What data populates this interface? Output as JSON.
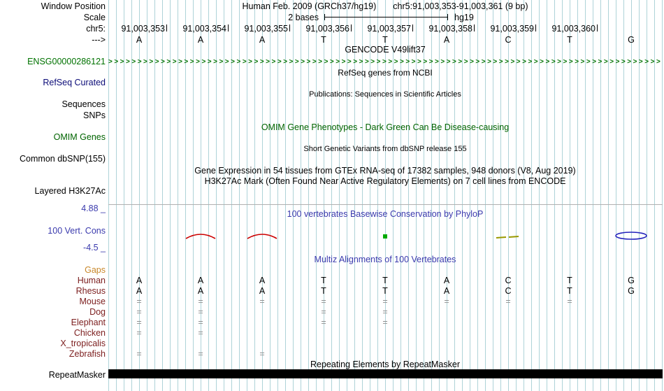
{
  "sidebar": {
    "window_position": "Window Position",
    "scale": "Scale",
    "chrom": "chr5:",
    "strand": "--->",
    "gencode_item": "ENSG00000286121",
    "refseq_curated": "RefSeq Curated",
    "sequences": "Sequences",
    "snps": "SNPs",
    "omim_genes": "OMIM Genes",
    "common_dbsnp": "Common dbSNP(155)",
    "layered_h3k27ac": "Layered H3K27Ac",
    "cons_max": "4.88 _",
    "cons_label": "100 Vert. Cons",
    "cons_min": "-4.5 _",
    "gaps": "Gaps",
    "repeatmasker": "RepeatMasker"
  },
  "header": {
    "assembly": "Human Feb. 2009 (GRCh37/hg19)",
    "position_range": "chr5:91,003,353-91,003,361 (9 bp)",
    "scale_label": "2 bases",
    "scale_assembly": "hg19",
    "ruler_positions": [
      "91,003,353",
      "91,003,354",
      "91,003,355",
      "91,003,356",
      "91,003,357",
      "91,003,358",
      "91,003,359",
      "91,003,360"
    ],
    "bases": [
      "A",
      "A",
      "A",
      "T",
      "T",
      "A",
      "C",
      "T",
      "G"
    ]
  },
  "tracks": {
    "gencode_title": "GENCODE V49lift37",
    "gencode_arrow_char": ">",
    "refseq_title": "RefSeq genes from NCBI",
    "publications_title": "Publications: Sequences in Scientific Articles",
    "omim_title": "OMIM Gene Phenotypes - Dark Green Can Be Disease-causing",
    "dbsnp_title": "Short Genetic Variants from dbSNP release 155",
    "gtex_title": "Gene Expression in 54 tissues from GTEx RNA-seq of 17382 samples, 948 donors (V8, Aug 2019)",
    "h3k27ac_title": "H3K27Ac Mark (Often Found Near Active Regulatory Elements) on 7 cell lines from ENCODE",
    "conservation_title": "100 vertebrates Basewise Conservation by PhyloP",
    "multiz_title": "Multiz Alignments of 100 Vertebrates",
    "repeatmasker_title": "Repeating Elements by RepeatMasker"
  },
  "conservation_glyphs": [
    {
      "shape": "arc",
      "color": "#cc0000",
      "col": 1
    },
    {
      "shape": "arc",
      "color": "#cc0000",
      "col": 2
    },
    {
      "shape": "dot",
      "color": "#00aa00",
      "col": 4
    },
    {
      "shape": "dashes",
      "color": "#999900",
      "col": 6
    },
    {
      "shape": "ellipse",
      "color": "#2222bb",
      "col": 8
    }
  ],
  "multiz_rows": [
    {
      "species": "Human",
      "cells": [
        "A",
        "A",
        "A",
        "T",
        "T",
        "A",
        "C",
        "T",
        "G"
      ]
    },
    {
      "species": "Rhesus",
      "cells": [
        "A",
        "A",
        "A",
        "T",
        "T",
        "A",
        "C",
        "T",
        "G"
      ]
    },
    {
      "species": "Mouse",
      "cells": [
        "=",
        "=",
        "=",
        "=",
        "=",
        "=",
        "=",
        "=",
        ""
      ]
    },
    {
      "species": "Dog",
      "cells": [
        "=",
        "=",
        "",
        "=",
        "=",
        "",
        "",
        "",
        ""
      ]
    },
    {
      "species": "Elephant",
      "cells": [
        "=",
        "=",
        "",
        "=",
        "=",
        "",
        "",
        "",
        ""
      ]
    },
    {
      "species": "Chicken",
      "cells": [
        "=",
        "=",
        "",
        "",
        "",
        "",
        "",
        "",
        ""
      ]
    },
    {
      "species": "X_tropicalis",
      "cells": [
        "",
        "",
        "",
        "",
        "",
        "",
        "",
        "",
        ""
      ]
    },
    {
      "species": "Zebrafish",
      "cells": [
        "=",
        "=",
        "=",
        "",
        "",
        "",
        "",
        "",
        ""
      ]
    }
  ],
  "colors": {
    "grid": "#aed3d8",
    "gencode_green": "#007200",
    "omim_green": "#006400",
    "refseq_navy": "#0c0c78",
    "conservation_blue": "#3a3aad",
    "species_dark_red": "#7d2020",
    "gaps_orange": "#c8872a",
    "gap_gray": "#909090"
  }
}
